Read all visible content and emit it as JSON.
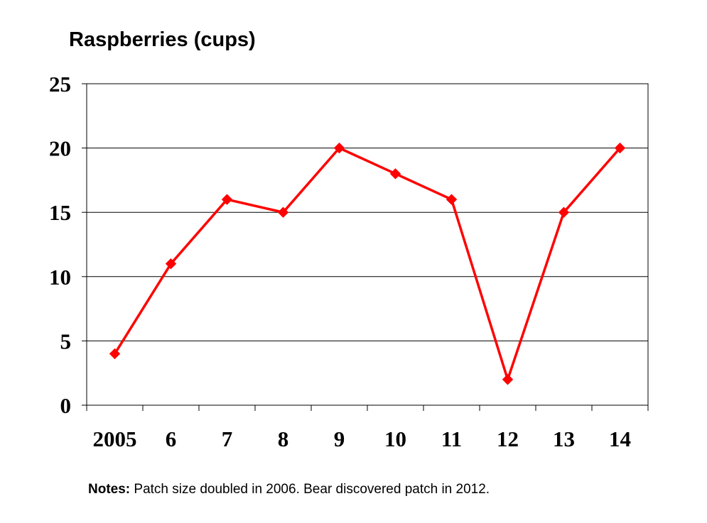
{
  "chart_data": {
    "type": "line",
    "title": "Raspberries (cups)",
    "xlabel": "",
    "ylabel": "",
    "categories": [
      "2005",
      "6",
      "7",
      "8",
      "9",
      "10",
      "11",
      "12",
      "13",
      "14"
    ],
    "series": [
      {
        "values": [
          4,
          11,
          16,
          15,
          20,
          18,
          16,
          2,
          15,
          20
        ]
      }
    ],
    "ylim": [
      0,
      25
    ],
    "yticks": [
      0,
      5,
      10,
      15,
      20,
      25
    ],
    "grid": true,
    "marker": "diamond",
    "line_color": "#ff0000",
    "notes": {
      "label": "Notes:",
      "text": " Patch size doubled in 2006. Bear discovered patch in 2012."
    }
  }
}
